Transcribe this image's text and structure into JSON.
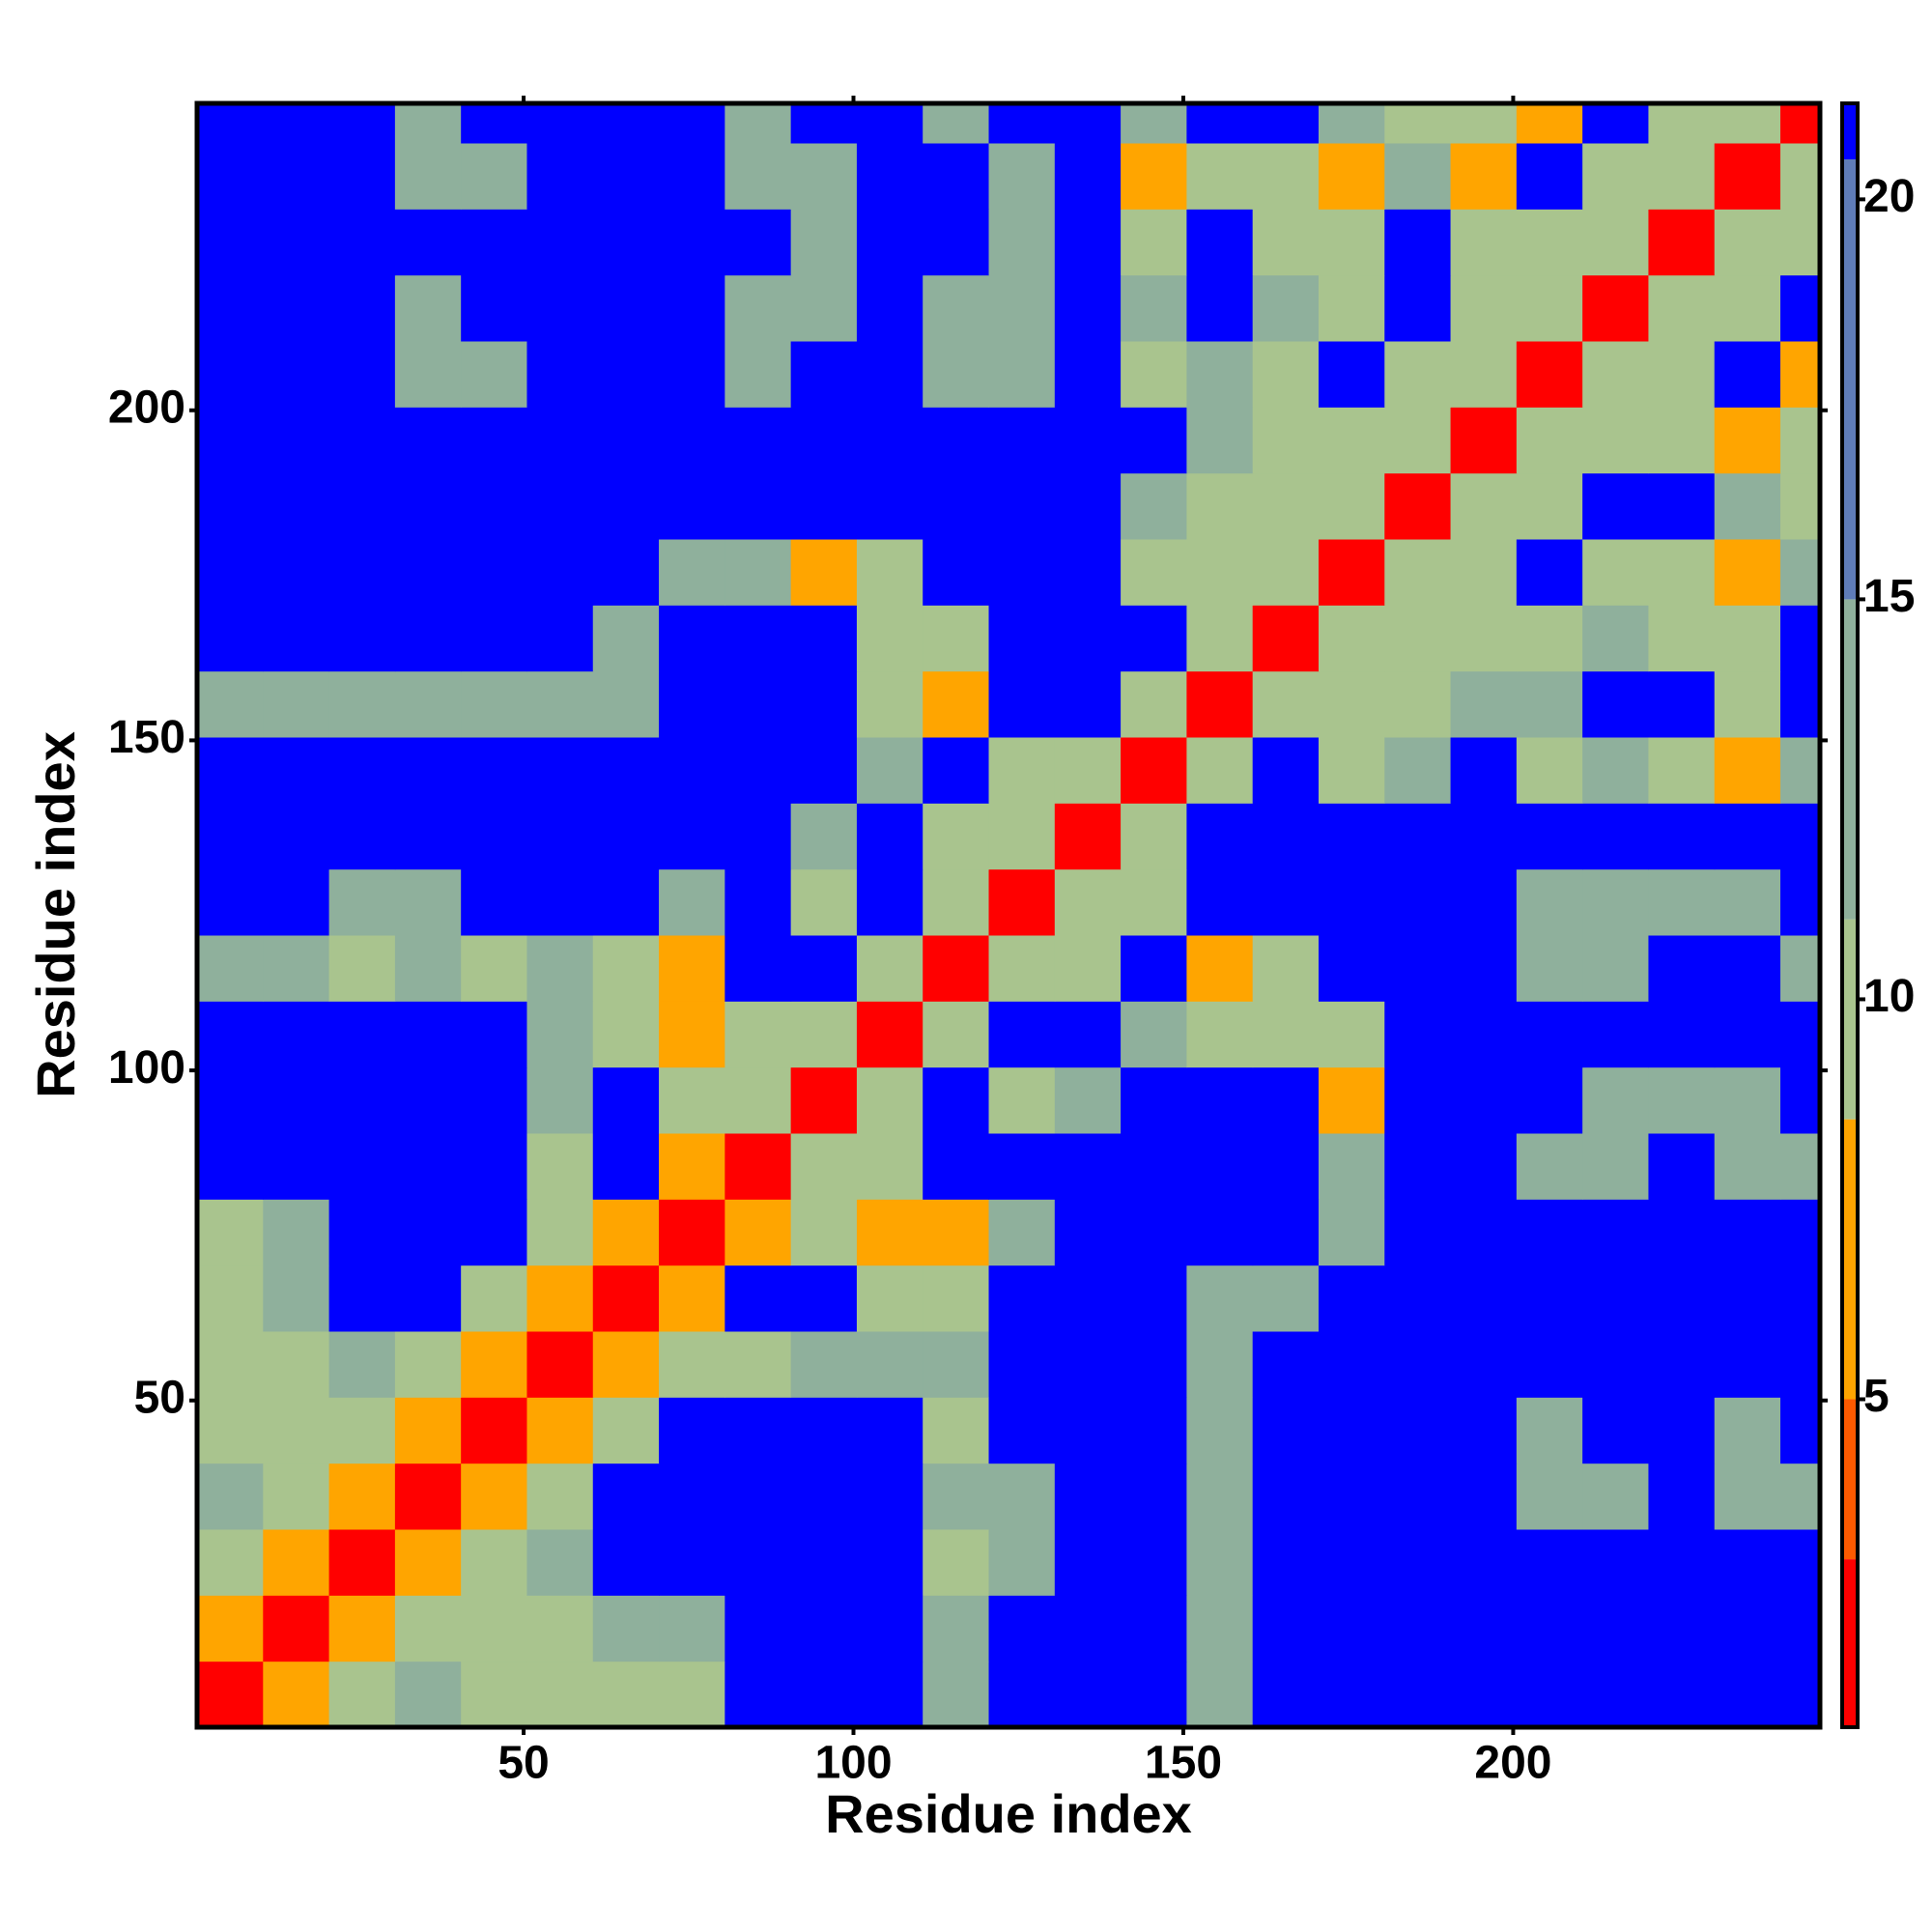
{
  "chart_data": {
    "type": "heatmap",
    "x_label": "Residue index",
    "y_label": "Residue index",
    "x": [
      5.5,
      15.5,
      25.5,
      35.5,
      45.5,
      55.5,
      65.5,
      75.5,
      85.5,
      95.5,
      105.5,
      115.5,
      125.5,
      135.5,
      145.5,
      155.5,
      165.5,
      175.5,
      185.5,
      195.5,
      205.5,
      215.5,
      225.5,
      235.5,
      245.5
    ],
    "y": [
      5.5,
      15.5,
      25.5,
      35.5,
      45.5,
      55.5,
      65.5,
      75.5,
      85.5,
      95.5,
      105.5,
      115.5,
      125.5,
      135.5,
      145.5,
      155.5,
      165.5,
      175.5,
      185.5,
      195.5,
      205.5,
      215.5,
      225.5,
      235.5,
      245.5
    ],
    "xlim": [
      0.5,
      246.5
    ],
    "ylim": [
      0.5,
      246.5
    ],
    "xticks": [
      50,
      100,
      150,
      200
    ],
    "yticks": [
      50,
      100,
      150,
      200
    ],
    "clim": [
      0.9,
      21.2
    ],
    "cticks": [
      5,
      10,
      15,
      20
    ],
    "colorscale": [
      {
        "upto": 3,
        "color": "#ff0000"
      },
      {
        "upto": 5,
        "color": "#ff5a00"
      },
      {
        "upto": 8.5,
        "color": "#ffa500"
      },
      {
        "upto": 11,
        "color": "#a9c48e"
      },
      {
        "upto": 15,
        "color": "#8fb09c"
      },
      {
        "upto": 20.5,
        "color": "#5f7cb8"
      },
      {
        "upto": 21.2,
        "color": "#0000ff"
      }
    ],
    "z": [
      [
        2,
        7,
        11,
        12,
        10,
        9,
        10,
        11,
        21,
        21,
        21,
        12,
        21,
        21,
        21,
        14,
        21,
        21,
        21,
        21,
        21,
        21,
        21,
        21,
        21
      ],
      [
        7,
        2,
        7,
        11,
        11,
        11,
        12,
        12,
        21,
        21,
        21,
        12,
        21,
        21,
        21,
        13,
        21,
        21,
        21,
        21,
        21,
        21,
        21,
        21,
        21
      ],
      [
        11,
        7,
        2,
        7,
        11,
        12,
        21,
        21,
        21,
        21,
        21,
        11,
        13,
        21,
        21,
        14,
        21,
        21,
        21,
        21,
        21,
        21,
        21,
        21,
        21
      ],
      [
        12,
        11,
        7,
        2,
        7,
        11,
        21,
        21,
        21,
        21,
        21,
        12,
        12,
        21,
        21,
        13,
        21,
        21,
        21,
        21,
        13,
        14,
        21,
        14,
        15
      ],
      [
        10,
        11,
        11,
        7,
        2,
        7,
        10,
        21,
        21,
        21,
        21,
        11,
        21,
        21,
        21,
        13,
        21,
        21,
        21,
        21,
        12,
        21,
        21,
        13,
        21
      ],
      [
        9,
        11,
        12,
        11,
        7,
        2,
        7,
        11,
        11,
        12,
        13,
        13,
        21,
        21,
        21,
        12,
        21,
        21,
        21,
        21,
        21,
        21,
        21,
        21,
        21
      ],
      [
        10,
        12,
        21,
        21,
        10,
        7,
        2,
        6,
        21,
        21,
        11,
        11,
        21,
        21,
        21,
        12,
        13,
        21,
        21,
        21,
        21,
        21,
        21,
        21,
        21
      ],
      [
        11,
        12,
        21,
        21,
        21,
        11,
        6,
        2,
        7,
        9,
        7,
        7,
        12,
        21,
        21,
        21,
        21,
        13,
        21,
        21,
        21,
        21,
        21,
        21,
        21
      ],
      [
        21,
        21,
        21,
        21,
        21,
        11,
        21,
        7,
        2,
        9,
        9,
        21,
        21,
        21,
        21,
        21,
        21,
        12,
        21,
        21,
        13,
        14,
        21,
        12,
        14
      ],
      [
        21,
        21,
        21,
        21,
        21,
        12,
        21,
        9,
        9,
        2,
        9,
        21,
        10,
        12,
        21,
        21,
        21,
        7,
        21,
        21,
        21,
        13,
        12,
        13,
        21
      ],
      [
        21,
        21,
        21,
        21,
        21,
        13,
        11,
        7,
        9,
        9,
        2,
        9,
        21,
        21,
        12,
        10,
        9,
        11,
        21,
        21,
        21,
        21,
        21,
        21,
        21
      ],
      [
        12,
        12,
        11,
        12,
        11,
        13,
        11,
        7,
        21,
        21,
        9,
        2,
        9,
        10,
        21,
        7,
        10,
        21,
        21,
        21,
        13,
        12,
        21,
        21,
        13
      ],
      [
        21,
        21,
        13,
        12,
        21,
        21,
        21,
        12,
        21,
        10,
        21,
        9,
        2,
        9,
        9,
        21,
        21,
        21,
        21,
        21,
        12,
        13,
        12,
        13,
        21
      ],
      [
        21,
        21,
        21,
        21,
        21,
        21,
        21,
        21,
        21,
        12,
        21,
        10,
        9,
        2,
        9,
        21,
        21,
        21,
        21,
        21,
        21,
        21,
        21,
        21,
        21
      ],
      [
        21,
        21,
        21,
        21,
        21,
        21,
        21,
        21,
        21,
        21,
        12,
        21,
        9,
        9,
        2,
        9,
        21,
        10,
        12,
        21,
        11,
        12,
        11,
        7,
        12
      ],
      [
        14,
        13,
        14,
        13,
        13,
        12,
        12,
        21,
        21,
        21,
        10,
        7,
        21,
        21,
        9,
        2,
        9,
        11,
        10,
        12,
        13,
        21,
        21,
        11,
        21
      ],
      [
        21,
        21,
        21,
        21,
        21,
        21,
        13,
        21,
        21,
        21,
        9,
        10,
        21,
        21,
        21,
        9,
        2,
        9,
        10,
        11,
        9,
        12,
        10,
        11,
        21
      ],
      [
        21,
        21,
        21,
        21,
        21,
        21,
        21,
        13,
        12,
        7,
        11,
        21,
        21,
        21,
        10,
        11,
        9,
        2,
        9,
        9,
        21,
        10,
        11,
        7,
        13
      ],
      [
        21,
        21,
        21,
        21,
        21,
        21,
        21,
        21,
        21,
        21,
        21,
        21,
        21,
        21,
        12,
        10,
        10,
        9,
        2,
        9,
        10,
        21,
        21,
        12,
        11
      ],
      [
        21,
        21,
        21,
        21,
        21,
        21,
        21,
        21,
        21,
        21,
        21,
        21,
        21,
        21,
        21,
        12,
        11,
        9,
        9,
        2,
        9,
        11,
        10,
        7,
        9
      ],
      [
        21,
        21,
        21,
        13,
        12,
        21,
        21,
        21,
        13,
        21,
        21,
        13,
        12,
        21,
        11,
        13,
        9,
        21,
        10,
        9,
        2,
        9,
        9,
        21,
        7
      ],
      [
        21,
        21,
        21,
        14,
        21,
        21,
        21,
        21,
        14,
        13,
        21,
        12,
        13,
        21,
        12,
        21,
        12,
        10,
        21,
        11,
        9,
        2,
        9,
        9,
        21
      ],
      [
        21,
        21,
        21,
        21,
        21,
        21,
        21,
        21,
        21,
        12,
        21,
        21,
        12,
        21,
        11,
        21,
        10,
        11,
        21,
        10,
        9,
        9,
        2,
        9,
        9
      ],
      [
        21,
        21,
        21,
        14,
        13,
        21,
        21,
        21,
        12,
        13,
        21,
        21,
        13,
        21,
        7,
        11,
        11,
        7,
        12,
        7,
        21,
        9,
        9,
        2,
        9
      ],
      [
        21,
        21,
        21,
        15,
        21,
        21,
        21,
        21,
        14,
        21,
        21,
        13,
        21,
        21,
        12,
        21,
        21,
        13,
        11,
        9,
        7,
        21,
        9,
        9,
        2
      ]
    ]
  }
}
